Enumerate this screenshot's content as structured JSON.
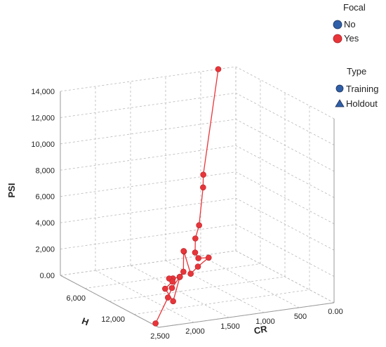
{
  "chart_data": {
    "type": "scatter",
    "subtype": "3d-scatter-connected",
    "axes": {
      "z": {
        "title": "PSI",
        "ticks": [
          "0.00",
          "2,000",
          "4,000",
          "6,000",
          "8,000",
          "10,000",
          "12,000",
          "14,000"
        ],
        "range": [
          0,
          14000
        ]
      },
      "h": {
        "title": "H",
        "ticks": [
          "6,000",
          "12,000"
        ],
        "range": [
          0,
          15000
        ]
      },
      "cr": {
        "title": "CR",
        "ticks": [
          "2,500",
          "2,000",
          "1,500",
          "1,000",
          "500",
          "0.00"
        ],
        "range": [
          2500,
          0
        ]
      }
    },
    "legend": {
      "placement": "top-right",
      "groups": [
        {
          "title": "Focal",
          "items": [
            {
              "label": "No",
              "color": "#2f5fa8",
              "shape": "circle"
            },
            {
              "label": "Yes",
              "color": "#e8353a",
              "shape": "circle"
            }
          ]
        },
        {
          "title": "Type",
          "items": [
            {
              "label": "Training",
              "color": "#2f5fa8",
              "shape": "circle"
            },
            {
              "label": "Holdout",
              "color": "#2f5fa8",
              "shape": "triangle"
            }
          ]
        }
      ]
    },
    "series": [
      {
        "focal": "Yes",
        "type": "Training",
        "color": "#e8353a",
        "points": [
          {
            "cr": 250,
            "h": 0,
            "psi": 14000
          },
          {
            "cr": 650,
            "h": 2000,
            "psi": 6800
          },
          {
            "cr": 700,
            "h": 2500,
            "psi": 6000
          },
          {
            "cr": 850,
            "h": 3500,
            "psi": 3500
          },
          {
            "cr": 950,
            "h": 4000,
            "psi": 2700
          },
          {
            "cr": 1000,
            "h": 4500,
            "psi": 1800
          },
          {
            "cr": 1000,
            "h": 5000,
            "psi": 1500
          },
          {
            "cr": 900,
            "h": 5500,
            "psi": 1600
          },
          {
            "cr": 1100,
            "h": 6000,
            "psi": 1200
          },
          {
            "cr": 1250,
            "h": 6500,
            "psi": 900
          },
          {
            "cr": 1300,
            "h": 6000,
            "psi": 2500
          },
          {
            "cr": 1350,
            "h": 6500,
            "psi": 2700
          },
          {
            "cr": 1400,
            "h": 7000,
            "psi": 1300
          },
          {
            "cr": 1500,
            "h": 7500,
            "psi": 1100
          },
          {
            "cr": 1550,
            "h": 7000,
            "psi": 900
          },
          {
            "cr": 1650,
            "h": 7500,
            "psi": 1100
          },
          {
            "cr": 1650,
            "h": 8000,
            "psi": 1000
          },
          {
            "cr": 1800,
            "h": 8500,
            "psi": 700
          },
          {
            "cr": 1500,
            "h": 6500,
            "psi": -1000
          },
          {
            "cr": 1450,
            "h": 7000,
            "psi": 950
          },
          {
            "cr": 1750,
            "h": 9000,
            "psi": 850
          },
          {
            "cr": 1900,
            "h": 10000,
            "psi": 500
          },
          {
            "cr": 2450,
            "h": 14000,
            "psi": 0
          }
        ]
      }
    ]
  }
}
